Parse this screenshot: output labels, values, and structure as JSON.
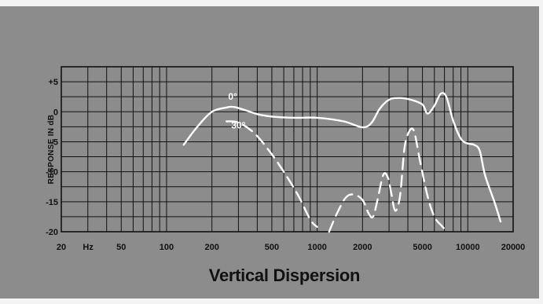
{
  "chart_data": {
    "type": "line",
    "title": "Vertical Dispersion",
    "ylabel": "RESPONSE IN dB",
    "x_unit_label": "Hz",
    "xscale": "log",
    "xlim": [
      20,
      20000
    ],
    "ylim": [
      -20,
      7.5
    ],
    "grid": true,
    "x_tick_labels": [
      {
        "value": 20,
        "label": "20"
      },
      {
        "value": 50,
        "label": "50"
      },
      {
        "value": 100,
        "label": "100"
      },
      {
        "value": 200,
        "label": "200"
      },
      {
        "value": 500,
        "label": "500"
      },
      {
        "value": 1000,
        "label": "1000"
      },
      {
        "value": 2000,
        "label": "2000"
      },
      {
        "value": 5000,
        "label": "5000"
      },
      {
        "value": 10000,
        "label": "10000"
      },
      {
        "value": 20000,
        "label": "20000"
      }
    ],
    "y_tick_labels": [
      {
        "value": 5,
        "label": "+5"
      },
      {
        "value": 0,
        "label": "0"
      },
      {
        "value": -5,
        "label": "-5"
      },
      {
        "value": -10,
        "label": "-10"
      },
      {
        "value": -15,
        "label": "-15"
      },
      {
        "value": -20,
        "label": "-20"
      }
    ],
    "series": [
      {
        "name": "0°",
        "style": "solid",
        "label_at": {
          "x": 275,
          "y": 2
        },
        "points": [
          [
            130,
            -5.5
          ],
          [
            160,
            -2.5
          ],
          [
            200,
            0
          ],
          [
            250,
            0.7
          ],
          [
            280,
            0.8
          ],
          [
            330,
            0.3
          ],
          [
            400,
            -0.4
          ],
          [
            500,
            -0.8
          ],
          [
            700,
            -1.0
          ],
          [
            1000,
            -1.0
          ],
          [
            1500,
            -1.6
          ],
          [
            2000,
            -2.6
          ],
          [
            2300,
            -1.8
          ],
          [
            2600,
            0.5
          ],
          [
            3000,
            2.0
          ],
          [
            3500,
            2.3
          ],
          [
            4200,
            2.0
          ],
          [
            5000,
            1.2
          ],
          [
            5400,
            -0.3
          ],
          [
            6000,
            1.0
          ],
          [
            6600,
            3.0
          ],
          [
            7200,
            2.5
          ],
          [
            8000,
            -1.5
          ],
          [
            9000,
            -4.5
          ],
          [
            10000,
            -5.3
          ],
          [
            11000,
            -5.5
          ],
          [
            12000,
            -6.5
          ],
          [
            13000,
            -10.5
          ],
          [
            15000,
            -15.0
          ],
          [
            16500,
            -18.3
          ]
        ]
      },
      {
        "name": "30°",
        "style": "dashed",
        "label_at": {
          "x": 300,
          "y": -2.8
        },
        "points": [
          [
            250,
            -1.6
          ],
          [
            300,
            -1.8
          ],
          [
            380,
            -3.5
          ],
          [
            480,
            -6.5
          ],
          [
            600,
            -10.0
          ],
          [
            750,
            -14.0
          ],
          [
            900,
            -18.0
          ],
          [
            1000,
            -19.2
          ],
          null,
          [
            1200,
            -20.0
          ],
          [
            1350,
            -17.0
          ],
          [
            1550,
            -14.3
          ],
          [
            1750,
            -13.8
          ],
          [
            2000,
            -14.7
          ],
          [
            2200,
            -17.0
          ],
          [
            2350,
            -17.5
          ],
          [
            2500,
            -15.0
          ],
          [
            2750,
            -10.5
          ],
          [
            2950,
            -11.0
          ],
          [
            3100,
            -13.5
          ],
          [
            3300,
            -16.5
          ],
          [
            3550,
            -14.0
          ],
          [
            3800,
            -6.0
          ],
          [
            4100,
            -3.2
          ],
          [
            4400,
            -3.3
          ],
          [
            4800,
            -8.0
          ],
          [
            5400,
            -14.0
          ],
          [
            6000,
            -17.5
          ],
          [
            6700,
            -19.0
          ],
          [
            7300,
            -20.0
          ]
        ]
      }
    ]
  }
}
